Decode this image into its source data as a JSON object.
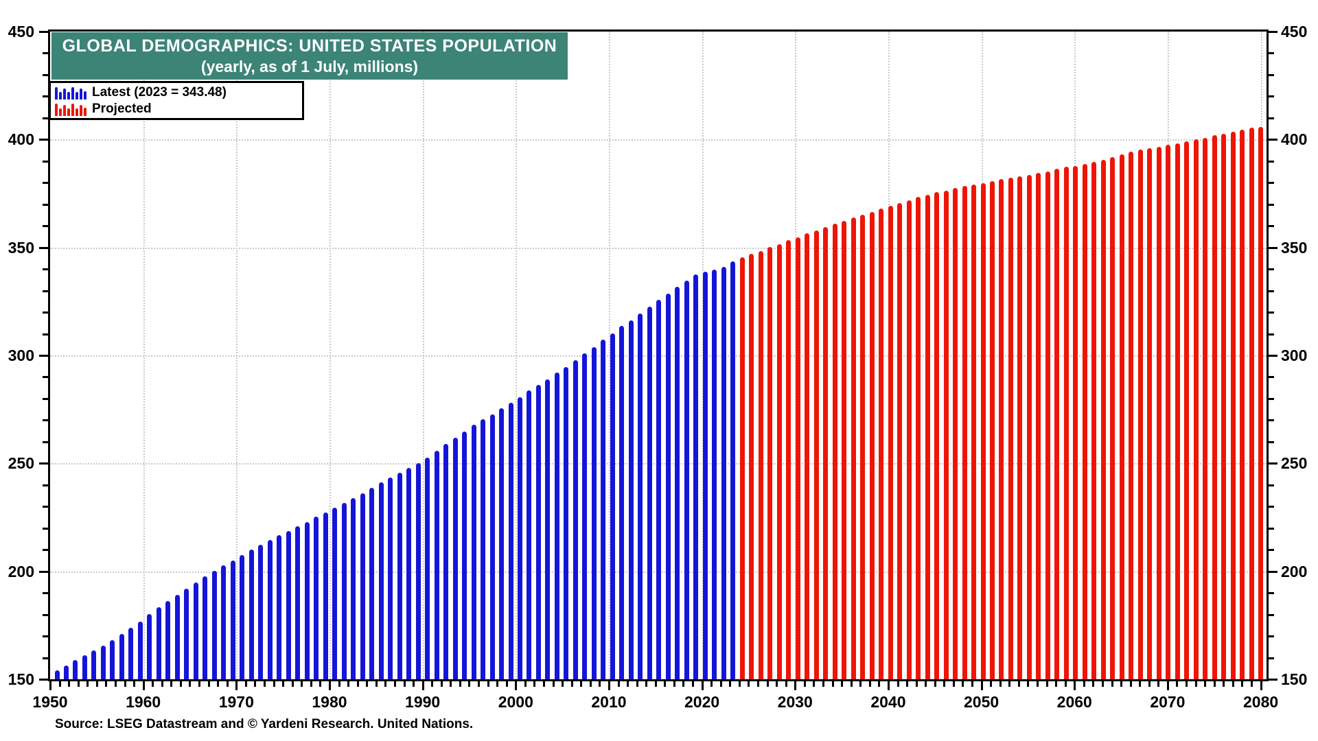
{
  "header": {
    "title": "GLOBAL DEMOGRAPHICS: UNITED STATES POPULATION",
    "subtitle": "(yearly, as of 1 July, millions)"
  },
  "source_note": "Source: LSEG Datastream and © Yardeni Research. United Nations.",
  "colors": {
    "banner_background": "#3b8476",
    "banner_text": "#ffffff",
    "latest_bars": "#1515d9",
    "projected_bars": "#ee1505",
    "gridlines": "#c9c9c9",
    "axis_frame": "#000000"
  },
  "chart_data": {
    "type": "bar",
    "title": "GLOBAL DEMOGRAPHICS: UNITED STATES POPULATION",
    "subtitle": "(yearly, as of 1 July, millions)",
    "xlabel": "",
    "ylabel": "",
    "ylim": [
      150,
      450
    ],
    "xlim": [
      1950,
      2080
    ],
    "y_ticks": [
      150,
      200,
      250,
      300,
      350,
      400,
      450
    ],
    "y_minor_tick_step": 10,
    "x_ticks": [
      1950,
      1960,
      1970,
      1980,
      1990,
      2000,
      2010,
      2020,
      2030,
      2040,
      2050,
      2060,
      2070,
      2080
    ],
    "x_minor_tick_step": 1,
    "grid": true,
    "grid_style": "dotted",
    "legend_position": "top-left",
    "latest_annotation": "Latest (2023 = 343.48)",
    "series": [
      {
        "name": "Latest (2023 = 343.48)",
        "color": "#1515d9",
        "start_year": 1950,
        "end_year": 2023,
        "values": [
          154.0,
          156.4,
          158.8,
          161.0,
          163.3,
          165.7,
          168.0,
          170.9,
          173.9,
          176.7,
          180.2,
          183.3,
          186.3,
          189.1,
          192.0,
          194.8,
          197.8,
          200.1,
          202.7,
          204.9,
          207.6,
          210.2,
          212.2,
          214.4,
          216.6,
          218.8,
          221.0,
          222.9,
          225.2,
          227.2,
          229.4,
          231.6,
          233.9,
          236.2,
          238.8,
          241.2,
          243.5,
          245.7,
          247.8,
          250.1,
          252.8,
          255.7,
          259.0,
          262.0,
          264.8,
          267.8,
          270.5,
          272.8,
          275.7,
          278.1,
          280.6,
          283.8,
          286.5,
          289.0,
          292.0,
          294.7,
          297.8,
          300.9,
          303.8,
          307.2,
          310.1,
          313.6,
          316.2,
          319.4,
          322.5,
          325.7,
          328.5,
          331.7,
          334.6,
          337.6,
          338.7,
          339.8,
          340.9,
          343.48
        ]
      },
      {
        "name": "Projected",
        "color": "#ee1505",
        "start_year": 2024,
        "end_year": 2080,
        "values": [
          345.4,
          347.0,
          348.4,
          350.1,
          351.6,
          353.3,
          354.8,
          356.6,
          358.0,
          359.6,
          361.0,
          362.4,
          363.8,
          365.2,
          366.5,
          367.9,
          369.3,
          370.7,
          371.9,
          373.3,
          374.4,
          375.5,
          376.2,
          377.5,
          378.5,
          379.2,
          379.9,
          380.8,
          381.7,
          382.3,
          382.9,
          383.6,
          384.4,
          385.3,
          386.4,
          387.3,
          387.8,
          388.6,
          389.6,
          390.5,
          391.8,
          393.1,
          394.3,
          395.4,
          396.0,
          396.6,
          397.5,
          398.3,
          399.2,
          400.0,
          400.8,
          401.9,
          402.7,
          403.6,
          404.6,
          405.5,
          405.9
        ]
      }
    ]
  }
}
